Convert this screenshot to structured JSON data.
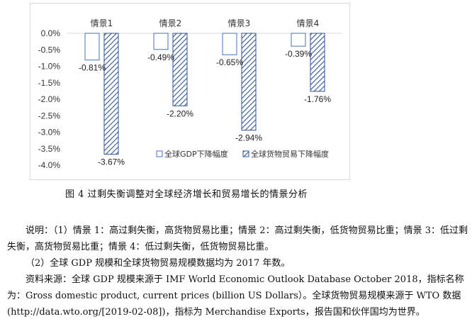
{
  "chart_data": {
    "type": "bar",
    "categories": [
      "情景1",
      "情景2",
      "情景3",
      "情景4"
    ],
    "series": [
      {
        "name": "全球GDP下降幅度",
        "values": [
          -0.81,
          -0.49,
          -0.65,
          -0.39
        ],
        "pattern": "outline",
        "color": "#4472c4"
      },
      {
        "name": "全球货物贸易下降幅度",
        "values": [
          -3.67,
          -2.2,
          -2.94,
          -1.76
        ],
        "pattern": "diagonal-hatch",
        "color": "#2f5597"
      }
    ],
    "data_labels": [
      [
        "-0.81%",
        "-0.49%",
        "-0.65%",
        "-0.39%"
      ],
      [
        "-3.67%",
        "-2.20%",
        "-2.94%",
        "-1.76%"
      ]
    ],
    "ylim": [
      -4.0,
      0.0
    ],
    "yticks": [
      0.0,
      -0.5,
      -1.0,
      -1.5,
      -2.0,
      -2.5,
      -3.0,
      -3.5,
      -4.0
    ],
    "ytick_labels": [
      "0.0%",
      "-0.5%",
      "-1.0%",
      "-1.5%",
      "-2.0%",
      "-2.5%",
      "-3.0%",
      "-3.5%",
      "-4.0%"
    ],
    "legend_position": "bottom-right",
    "grid": false
  },
  "caption": "图 4   过剩失衡调整对全球经济增长和贸易增长的情景分析",
  "notes": {
    "line1": "说明：（1）情景 1：高过剩失衡，高货物贸易比重；情景 2：高过剩失衡，低货物贸易比重；情景 3：低过剩失衡，高货物贸易比重；情景 4：低过剩失衡，低货物贸易比重。",
    "line2": "（2）全球 GDP 规模和全球货物贸易规模数据均为 2017 年数。",
    "line3": "资料来源：全球 GDP 规模来源于 IMF World Economic Outlook Database October 2018，指标名称为：Gross domestic product,  current prices  (billion US Dollars）。全球货物贸易规模来源于 WTO 数据(http://data.wto.org/[2019-02-08])，指标为 Merchandise Exports，报告国和伙伴国均为世界。"
  }
}
